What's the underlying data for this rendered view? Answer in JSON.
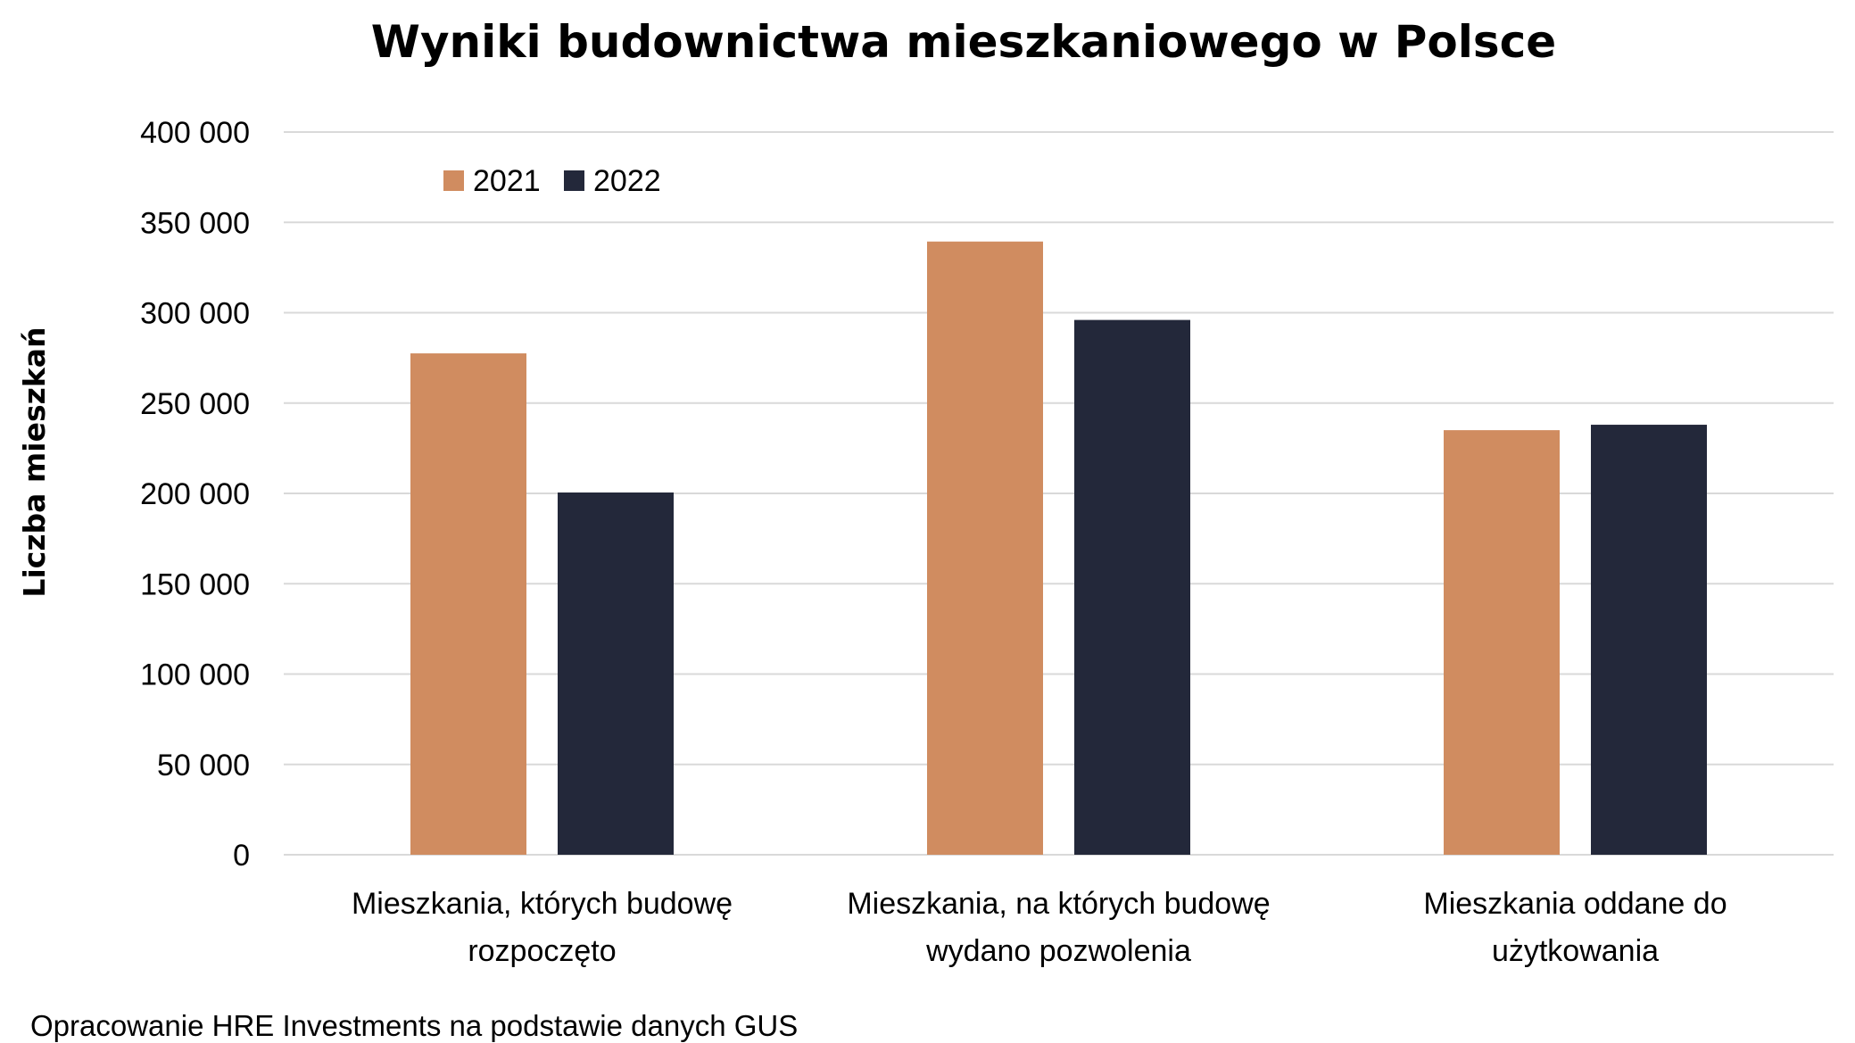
{
  "chart_data": {
    "type": "bar",
    "title": "Wyniki budownictwa mieszkaniowego w Polsce",
    "ylabel": "Liczba mieszkań",
    "xlabel": "",
    "ylim": [
      0,
      400000
    ],
    "yticks": [
      0,
      50000,
      100000,
      150000,
      200000,
      250000,
      300000,
      350000,
      400000
    ],
    "ytick_labels": [
      "0",
      "50 000",
      "100 000",
      "150 000",
      "200 000",
      "250 000",
      "300 000",
      "350 000",
      "400 000"
    ],
    "categories": [
      [
        "Mieszkania, których budowę",
        "rozpoczęto"
      ],
      [
        "Mieszkania, na których budowę",
        "wydano pozwolenia"
      ],
      [
        "Mieszkania oddane do",
        "użytkowania"
      ]
    ],
    "series": [
      {
        "name": "2021",
        "color": "#d08c60",
        "values": [
          277500,
          339400,
          235000
        ]
      },
      {
        "name": "2022",
        "color": "#23283a",
        "values": [
          200500,
          296000,
          238000
        ]
      }
    ],
    "grid": true,
    "legend_position": "top-left"
  },
  "footer": {
    "source": "Opracowanie HRE Investments na podstawie danych GUS"
  }
}
